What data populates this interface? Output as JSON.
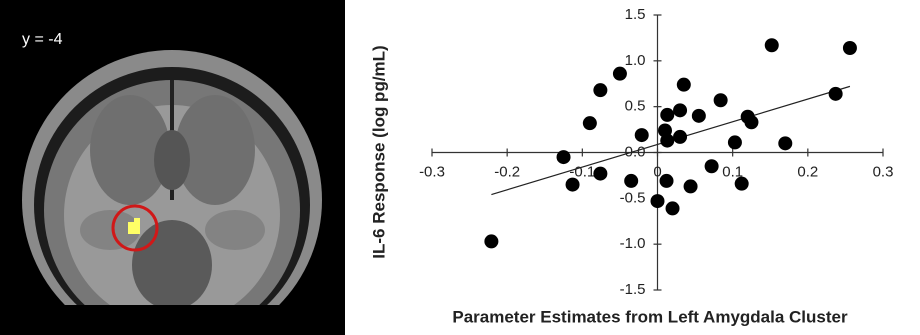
{
  "image_label": "y = -4",
  "chart_data": {
    "type": "scatter",
    "xlabel": "Parameter Estimates from Left Amygdala Cluster",
    "ylabel": "IL-6 Response (log pg/mL)",
    "xlim": [
      -0.3,
      0.3
    ],
    "xticks": [
      -0.3,
      -0.2,
      -0.1,
      0,
      0.1,
      0.2,
      0.3
    ],
    "ylim": [
      -1.5,
      1.5
    ],
    "yticks": [
      1.5,
      {
        "value": 1,
        "label": "1.0"
      },
      0.5,
      {
        "value": 0,
        "label": "0.0"
      },
      -0.5,
      {
        "value": -1,
        "label": "-1.0"
      },
      -1.5
    ],
    "color": "#000000",
    "trendline": true,
    "x": [
      -0.221,
      -0.125,
      -0.113,
      -0.076,
      -0.076,
      -0.09,
      -0.05,
      -0.035,
      -0.021,
      0,
      0.01,
      0.013,
      0.013,
      0.012,
      0.02,
      0.03,
      0.03,
      0.035,
      0.044,
      0.055,
      0.072,
      0.084,
      0.103,
      0.112,
      0.12,
      0.125,
      0.17,
      0.152,
      0.237,
      0.256
    ],
    "y": [
      -0.97,
      -0.05,
      -0.35,
      0.68,
      -0.23,
      0.32,
      0.86,
      -0.31,
      0.19,
      -0.53,
      0.24,
      0.41,
      0.13,
      -0.31,
      -0.61,
      0.17,
      0.46,
      0.74,
      -0.37,
      0.4,
      -0.15,
      0.57,
      0.11,
      -0.34,
      0.39,
      0.33,
      0.1,
      1.17,
      0.64,
      1.14
    ]
  }
}
